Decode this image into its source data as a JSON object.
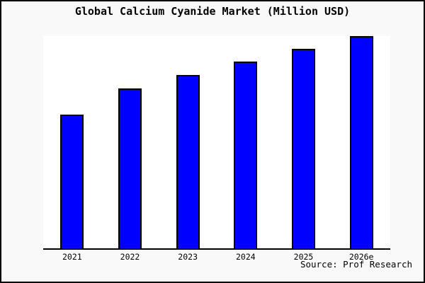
{
  "page": {
    "title": "Global Calcium Cyanide Market (Million USD)",
    "source": "Source: Prof Research"
  },
  "colors": {
    "bar_fill": "#0000ff",
    "bar_border": "#000000",
    "plot_background": "#ffffff",
    "page_background": "#f9f9f9",
    "axis_line": "#000000",
    "frame_border": "#000000",
    "text": "#000000"
  },
  "chart_data": {
    "type": "bar",
    "title": "Global Calcium Cyanide Market (Million USD)",
    "categories": [
      "2021",
      "2022",
      "2023",
      "2024",
      "2025",
      "2026e"
    ],
    "values": [
      189,
      226,
      245,
      264,
      282,
      300
    ],
    "units_note": "y-axis has no tick labels; values are relative bar heights (pixels), tallest bar spans full plot height",
    "xlabel": "",
    "ylabel": "",
    "ylim": [
      0,
      300
    ],
    "grid": false,
    "legend": false,
    "y_axis_labels_visible": false,
    "source_annotation": "Source: Prof Research"
  }
}
